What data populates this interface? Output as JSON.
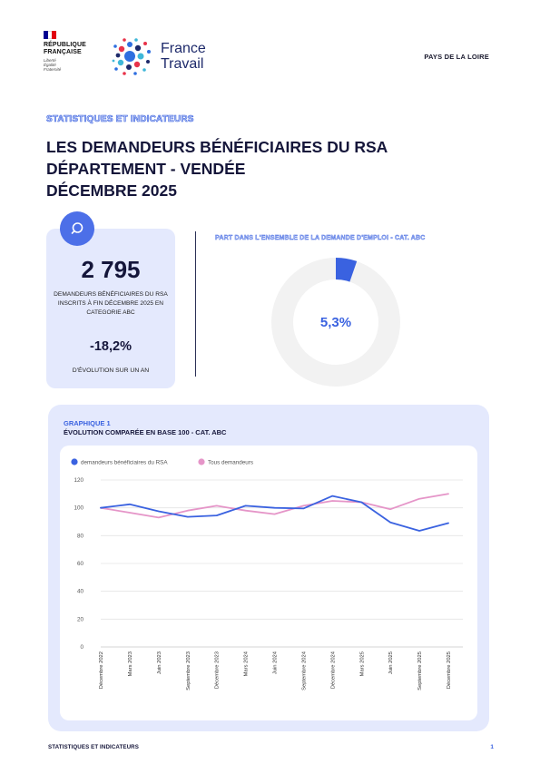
{
  "header": {
    "gov_lines": [
      "RÉPUBLIQUE",
      "FRANÇAISE"
    ],
    "gov_motto": [
      "Liberté",
      "Égalité",
      "Fraternité"
    ],
    "brand_lines": [
      "France",
      "Travail"
    ],
    "region": "PAYS DE LA LOIRE"
  },
  "kicker": "STATISTIQUES ET INDICATEURS",
  "title_lines": [
    "LES DEMANDEURS BÉNÉFICIAIRES DU RSA",
    "DÉPARTEMENT - VENDÉE",
    "DÉCEMBRE 2025"
  ],
  "kpi": {
    "icon": "search-icon",
    "value": "2 795",
    "caption": "DEMANDEURS BÉNÉFICIAIRES DU RSA INSCRITS À FIN DÉCEMBRE 2025 EN CATEGORIE ABC",
    "evolution": "-18,2%",
    "evolution_label": "D'ÉVOLUTION SUR UN AN"
  },
  "share": {
    "title": "PART DANS L'ENSEMBLE DE LA DEMANDE D'EMPLOI - CAT. ABC",
    "value_text": "5,3%",
    "fraction": 0.053
  },
  "graph": {
    "kicker": "GRAPHIQUE 1",
    "title": "ÉVOLUTION COMPARÉE EN BASE 100 - CAT. ABC"
  },
  "colors": {
    "accent": "#3a62e0",
    "series_rsa": "#3a62e0",
    "series_all": "#e595c8",
    "panel": "#e4e9fd",
    "navy": "#15163a"
  },
  "chart_data": {
    "type": "line",
    "categories": [
      "Décembre 2022",
      "Mars 2023",
      "Juin 2023",
      "Septembre 2023",
      "Décembre 2023",
      "Mars 2024",
      "Juin 2024",
      "Septembre 2024",
      "Décembre 2024",
      "Mars 2025",
      "Juin 2025",
      "Septembre 2025",
      "Décembre 2025"
    ],
    "series": [
      {
        "name": "demandeurs bénéficiaires du RSA",
        "color": "#3a62e0",
        "values": [
          100,
          102.5,
          97.5,
          93.5,
          94.5,
          101.5,
          100,
          99.5,
          108.5,
          104,
          89.5,
          83.5,
          89
        ]
      },
      {
        "name": "Tous demandeurs",
        "color": "#e595c8",
        "values": [
          100,
          96.5,
          93,
          98,
          101.5,
          98,
          95.5,
          101.5,
          105,
          104,
          99,
          106.5,
          110
        ]
      }
    ],
    "yticks": [
      0,
      20,
      40,
      60,
      80,
      100,
      120
    ],
    "ylim": [
      0,
      120
    ],
    "grid": true,
    "legend": "top-left"
  },
  "footer": {
    "left": "STATISTIQUES ET INDICATEURS",
    "page": "1"
  }
}
